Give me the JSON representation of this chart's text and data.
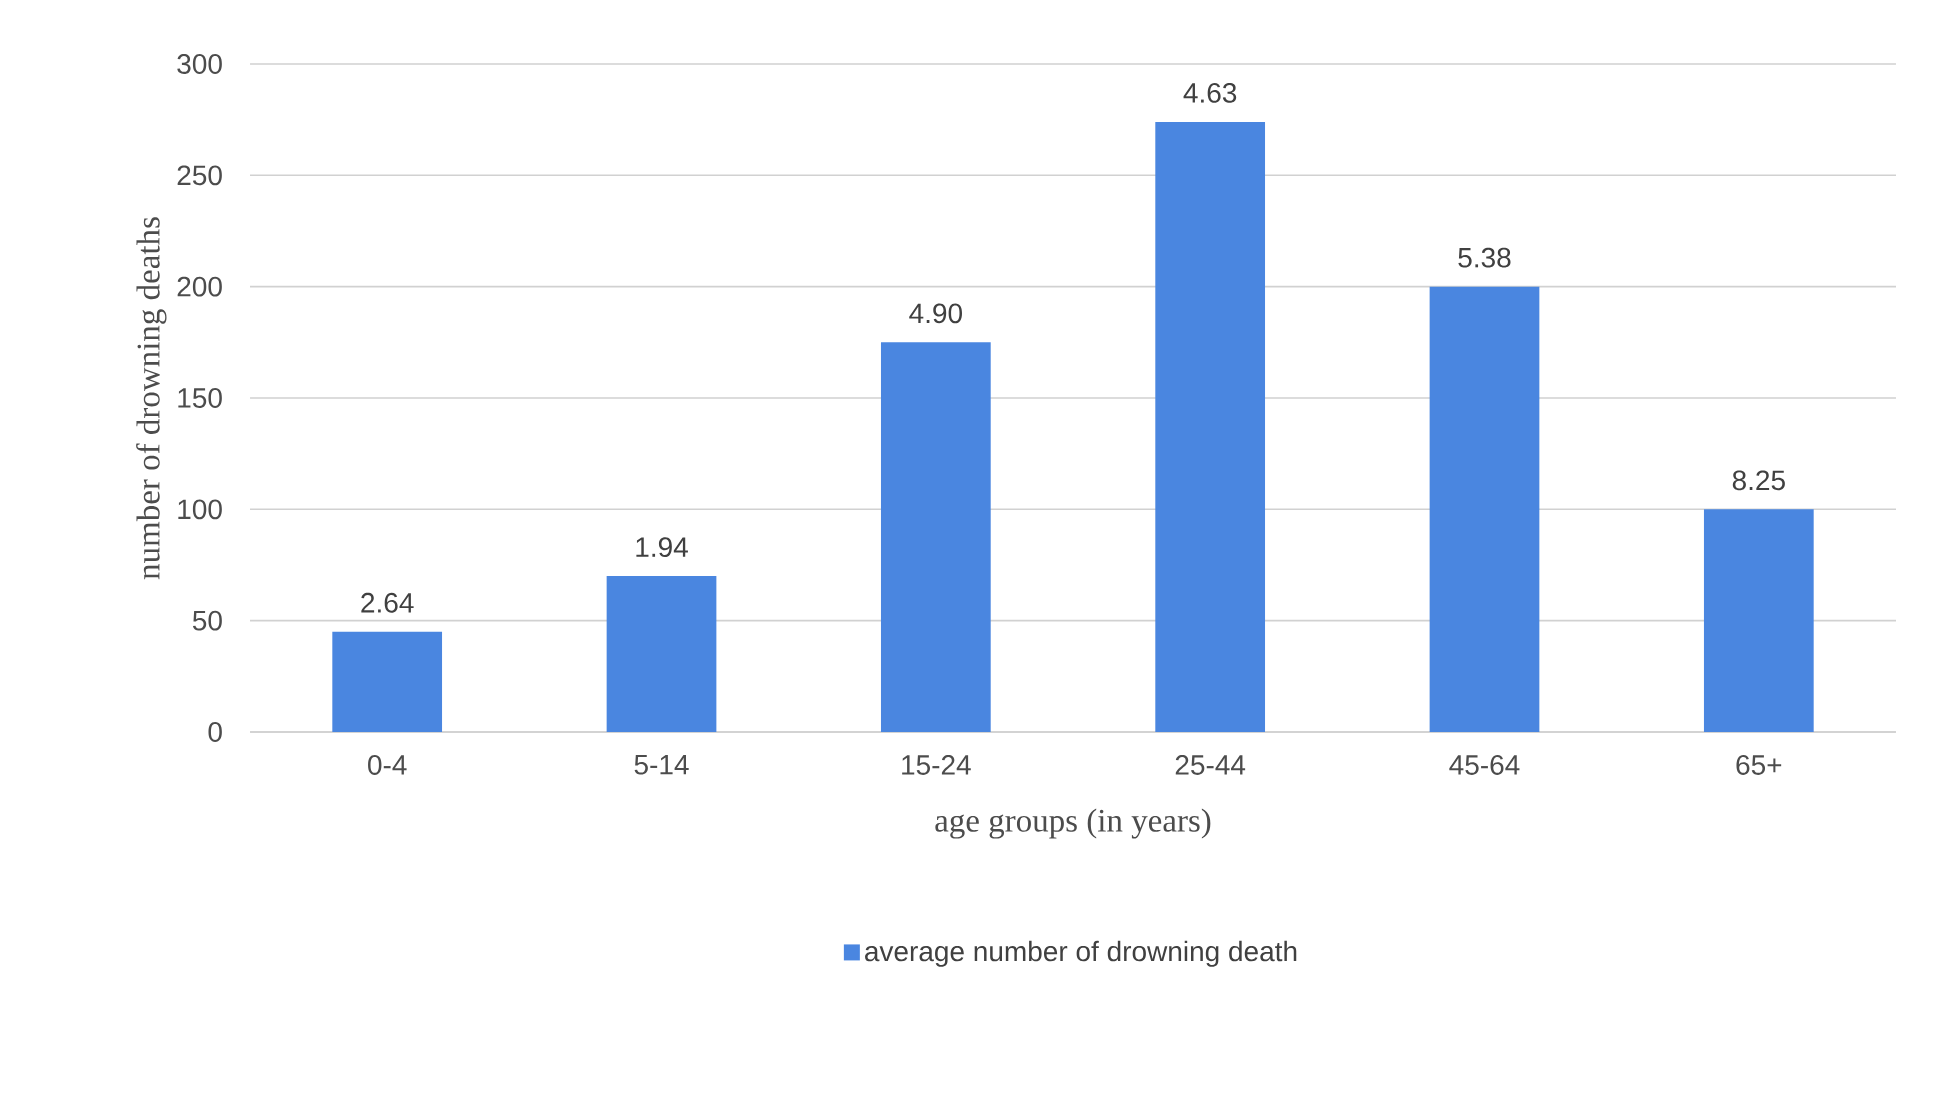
{
  "chart_data": {
    "type": "bar",
    "xlabel": "age groups (in years)",
    "ylabel": "number of drowning deaths",
    "categories": [
      "0-4",
      "5-14",
      "15-24",
      "25-44",
      "45-64",
      "65+"
    ],
    "series": [
      {
        "name": "average number of drowning death",
        "color": "#4a86e0",
        "values": [
          45,
          70,
          175,
          274,
          200,
          100
        ]
      }
    ],
    "annotations": [
      {
        "text": "2.64",
        "x": "0-4",
        "y": 45
      },
      {
        "text": "1.94",
        "x": "5-14",
        "y": 70
      },
      {
        "text": "4.90",
        "x": "15-24",
        "y": 175
      },
      {
        "text": "4.63",
        "x": "25-44",
        "y": 274
      },
      {
        "text": "5.38",
        "x": "45-64",
        "y": 200
      },
      {
        "text": "8.25",
        "x": "65+",
        "y": 100
      }
    ],
    "ylim": [
      0,
      300
    ],
    "yticks": [
      0,
      50,
      100,
      150,
      200,
      250,
      300
    ],
    "grid": "y",
    "legend": "bottom"
  }
}
